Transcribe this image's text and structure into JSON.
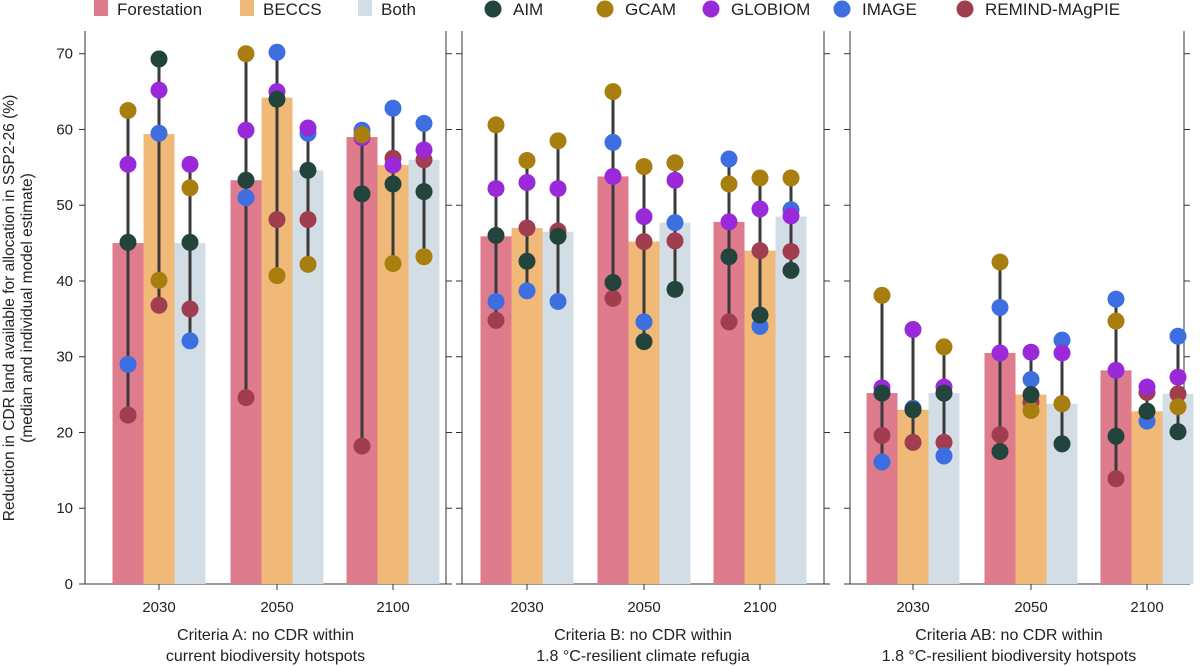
{
  "chart_data": {
    "type": "bar",
    "ylabel": [
      "Reduction in CDR land available for allocation in SSP2-26 (%)",
      "(median and individual model estimate)"
    ],
    "ylim": [
      0,
      73
    ],
    "yticks": [
      0,
      10,
      20,
      30,
      40,
      50,
      60,
      70
    ],
    "x_categories": [
      "2030",
      "2050",
      "2100"
    ],
    "bar_legend": [
      {
        "name": "Forestation",
        "color": "#de7b8d"
      },
      {
        "name": "BECCS",
        "color": "#f0b978"
      },
      {
        "name": "Both",
        "color": "#d2dde6"
      }
    ],
    "model_legend": [
      {
        "name": "AIM",
        "color": "#23443d"
      },
      {
        "name": "GCAM",
        "color": "#a87e0f"
      },
      {
        "name": "GLOBIOM",
        "color": "#9a2ad9"
      },
      {
        "name": "IMAGE",
        "color": "#3e6fe0"
      },
      {
        "name": "REMIND-MAgPIE",
        "color": "#a03d4e"
      }
    ],
    "panels": [
      {
        "caption": [
          "Criteria A: no CDR within",
          "current biodiversity hotspots"
        ],
        "groups": [
          {
            "year": "2030",
            "bars": [
              {
                "type": "Forestation",
                "median": 45,
                "models": {
                  "AIM": 45.1,
                  "GCAM": 62.5,
                  "GLOBIOM": 55.4,
                  "IMAGE": 29.0,
                  "REMIND-MAgPIE": 22.3
                }
              },
              {
                "type": "BECCS",
                "median": 59.4,
                "models": {
                  "AIM": 69.3,
                  "GCAM": 40.1,
                  "GLOBIOM": 65.2,
                  "IMAGE": 59.5,
                  "REMIND-MAgPIE": 36.8
                }
              },
              {
                "type": "Both",
                "median": 45,
                "models": {
                  "AIM": 45.1,
                  "GCAM": 52.3,
                  "GLOBIOM": 55.4,
                  "IMAGE": 32.1,
                  "REMIND-MAgPIE": 36.3
                }
              }
            ]
          },
          {
            "year": "2050",
            "bars": [
              {
                "type": "Forestation",
                "median": 53.3,
                "models": {
                  "AIM": 53.3,
                  "GCAM": 70.0,
                  "GLOBIOM": 59.9,
                  "IMAGE": 51.0,
                  "REMIND-MAgPIE": 24.6
                }
              },
              {
                "type": "BECCS",
                "median": 64.2,
                "models": {
                  "AIM": 64.0,
                  "GCAM": 40.7,
                  "GLOBIOM": 65.0,
                  "IMAGE": 70.2,
                  "REMIND-MAgPIE": 48.1
                }
              },
              {
                "type": "Both",
                "median": 54.6,
                "models": {
                  "AIM": 54.6,
                  "GCAM": 42.2,
                  "GLOBIOM": 60.2,
                  "IMAGE": 59.5,
                  "REMIND-MAgPIE": 48.1
                }
              }
            ]
          },
          {
            "year": "2100",
            "bars": [
              {
                "type": "Forestation",
                "median": 59,
                "models": {
                  "AIM": 51.5,
                  "GCAM": 59.3,
                  "GLOBIOM": 58.9,
                  "IMAGE": 59.9,
                  "REMIND-MAgPIE": 18.2
                }
              },
              {
                "type": "BECCS",
                "median": 55.3,
                "models": {
                  "AIM": 52.8,
                  "GCAM": 42.3,
                  "GLOBIOM": 55.3,
                  "IMAGE": 62.8,
                  "REMIND-MAgPIE": 56.2
                }
              },
              {
                "type": "Both",
                "median": 56,
                "models": {
                  "AIM": 51.8,
                  "GCAM": 43.2,
                  "GLOBIOM": 57.3,
                  "IMAGE": 60.8,
                  "REMIND-MAgPIE": 56.0
                }
              }
            ]
          }
        ]
      },
      {
        "caption": [
          "Criteria B: no CDR within",
          "1.8 °C-resilient climate refugia"
        ],
        "groups": [
          {
            "year": "2030",
            "bars": [
              {
                "type": "Forestation",
                "median": 45.9,
                "models": {
                  "AIM": 46.0,
                  "GCAM": 60.6,
                  "GLOBIOM": 52.2,
                  "IMAGE": 37.3,
                  "REMIND-MAgPIE": 34.8
                }
              },
              {
                "type": "BECCS",
                "median": 47,
                "models": {
                  "AIM": 42.6,
                  "GCAM": 55.9,
                  "GLOBIOM": 53.0,
                  "IMAGE": 38.7,
                  "REMIND-MAgPIE": 47.0
                }
              },
              {
                "type": "Both",
                "median": 46.5,
                "models": {
                  "AIM": 45.9,
                  "GCAM": 58.5,
                  "GLOBIOM": 52.2,
                  "IMAGE": 37.3,
                  "REMIND-MAgPIE": 46.6
                }
              }
            ]
          },
          {
            "year": "2050",
            "bars": [
              {
                "type": "Forestation",
                "median": 53.8,
                "models": {
                  "AIM": 39.8,
                  "GCAM": 65.0,
                  "GLOBIOM": 53.8,
                  "IMAGE": 58.3,
                  "REMIND-MAgPIE": 37.7
                }
              },
              {
                "type": "BECCS",
                "median": 45.2,
                "models": {
                  "AIM": 32.0,
                  "GCAM": 55.1,
                  "GLOBIOM": 48.5,
                  "IMAGE": 34.6,
                  "REMIND-MAgPIE": 45.2
                }
              },
              {
                "type": "Both",
                "median": 47.7,
                "models": {
                  "AIM": 38.9,
                  "GCAM": 55.6,
                  "GLOBIOM": 53.3,
                  "IMAGE": 47.7,
                  "REMIND-MAgPIE": 45.3
                }
              }
            ]
          },
          {
            "year": "2100",
            "bars": [
              {
                "type": "Forestation",
                "median": 47.8,
                "models": {
                  "AIM": 43.2,
                  "GCAM": 52.8,
                  "GLOBIOM": 47.8,
                  "IMAGE": 56.1,
                  "REMIND-MAgPIE": 34.6
                }
              },
              {
                "type": "BECCS",
                "median": 44,
                "models": {
                  "AIM": 35.5,
                  "GCAM": 53.6,
                  "GLOBIOM": 49.5,
                  "IMAGE": 34.0,
                  "REMIND-MAgPIE": 44.0
                }
              },
              {
                "type": "Both",
                "median": 48.5,
                "models": {
                  "AIM": 41.4,
                  "GCAM": 53.6,
                  "GLOBIOM": 48.6,
                  "IMAGE": 49.4,
                  "REMIND-MAgPIE": 43.9
                }
              }
            ]
          }
        ]
      },
      {
        "caption": [
          "Criteria AB: no CDR within",
          "1.8 °C-resilient biodiversity hotspots"
        ],
        "groups": [
          {
            "year": "2030",
            "bars": [
              {
                "type": "Forestation",
                "median": 25.2,
                "models": {
                  "AIM": 25.2,
                  "GCAM": 38.1,
                  "GLOBIOM": 25.9,
                  "IMAGE": 16.1,
                  "REMIND-MAgPIE": 19.6
                }
              },
              {
                "type": "BECCS",
                "median": 23,
                "models": {
                  "AIM": 23.0,
                  "GCAM": 23.0,
                  "GLOBIOM": 33.6,
                  "IMAGE": 23.2,
                  "REMIND-MAgPIE": 18.7
                }
              },
              {
                "type": "Both",
                "median": 25.2,
                "models": {
                  "AIM": 25.2,
                  "GCAM": 31.3,
                  "GLOBIOM": 26.0,
                  "IMAGE": 16.9,
                  "REMIND-MAgPIE": 18.7
                }
              }
            ]
          },
          {
            "year": "2050",
            "bars": [
              {
                "type": "Forestation",
                "median": 30.5,
                "models": {
                  "AIM": 17.5,
                  "GCAM": 42.5,
                  "GLOBIOM": 30.5,
                  "IMAGE": 36.5,
                  "REMIND-MAgPIE": 19.7
                }
              },
              {
                "type": "BECCS",
                "median": 25,
                "models": {
                  "AIM": 25.0,
                  "GCAM": 22.9,
                  "GLOBIOM": 30.6,
                  "IMAGE": 27.0,
                  "REMIND-MAgPIE": 24.0
                }
              },
              {
                "type": "Both",
                "median": 23.8,
                "models": {
                  "AIM": 18.5,
                  "GCAM": 23.8,
                  "GLOBIOM": 30.5,
                  "IMAGE": 32.2,
                  "REMIND-MAgPIE": 23.8
                }
              }
            ]
          },
          {
            "year": "2100",
            "bars": [
              {
                "type": "Forestation",
                "median": 28.2,
                "models": {
                  "AIM": 19.5,
                  "GCAM": 34.7,
                  "GLOBIOM": 28.2,
                  "IMAGE": 37.6,
                  "REMIND-MAgPIE": 13.9
                }
              },
              {
                "type": "BECCS",
                "median": 22.8,
                "models": {
                  "AIM": 22.8,
                  "GCAM": 22.8,
                  "GLOBIOM": 26.0,
                  "IMAGE": 21.5,
                  "REMIND-MAgPIE": 25.3
                }
              },
              {
                "type": "Both",
                "median": 25.1,
                "models": {
                  "AIM": 20.1,
                  "GCAM": 23.4,
                  "GLOBIOM": 27.3,
                  "IMAGE": 32.7,
                  "REMIND-MAgPIE": 25.1
                }
              }
            ]
          }
        ]
      }
    ]
  }
}
